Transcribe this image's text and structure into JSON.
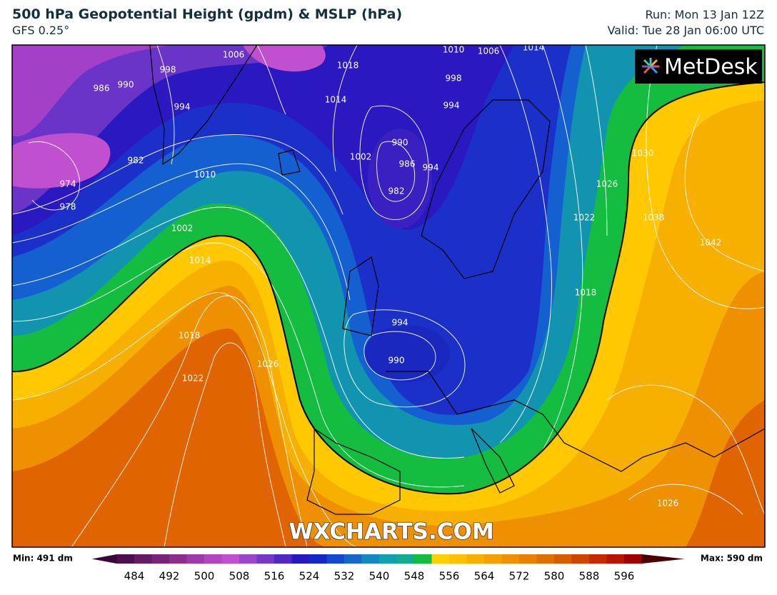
{
  "header": {
    "title": "500 hPa Geopotential Height (gpdm) & MSLP (hPa)",
    "model": "GFS 0.25°",
    "run": "Run: Mon 13 Jan 12Z",
    "valid": "Valid: Tue 28 Jan 06:00 UTC"
  },
  "map": {
    "watermark": "WXCHARTS.COM",
    "logo": "MetDesk",
    "isobar_labels": [
      "1006",
      "998",
      "986",
      "990",
      "994",
      "982",
      "974",
      "978",
      "1010",
      "1002",
      "1014",
      "1018",
      "1022",
      "1026",
      "1018",
      "1014",
      "1002",
      "990",
      "986",
      "982",
      "994",
      "998",
      "994",
      "1010",
      "1006",
      "1014",
      "994",
      "990",
      "1022",
      "1026",
      "1030",
      "1038",
      "1042",
      "1018",
      "1026"
    ]
  },
  "colorbar": {
    "min_label": "Min: 491 dm",
    "max_label": "Max: 590 dm",
    "ticks": [
      484,
      492,
      500,
      508,
      516,
      524,
      532,
      540,
      548,
      556,
      564,
      572,
      580,
      588,
      596
    ],
    "colors": [
      "#3a0838",
      "#4e0f4e",
      "#641a64",
      "#782478",
      "#8c2e8c",
      "#a03aa8",
      "#b444c0",
      "#c050d0",
      "#9a46cc",
      "#7638c8",
      "#5028c4",
      "#2818c0",
      "#1228c8",
      "#1448d0",
      "#1468c8",
      "#1488c0",
      "#12a0b0",
      "#12ac90",
      "#14bc40",
      "#ffd000",
      "#ffc000",
      "#f8b000",
      "#f4a000",
      "#ee9000",
      "#e88000",
      "#e07000",
      "#d85c00",
      "#d04400",
      "#c82a00",
      "#b81400",
      "#a00000",
      "#4a0000"
    ]
  }
}
